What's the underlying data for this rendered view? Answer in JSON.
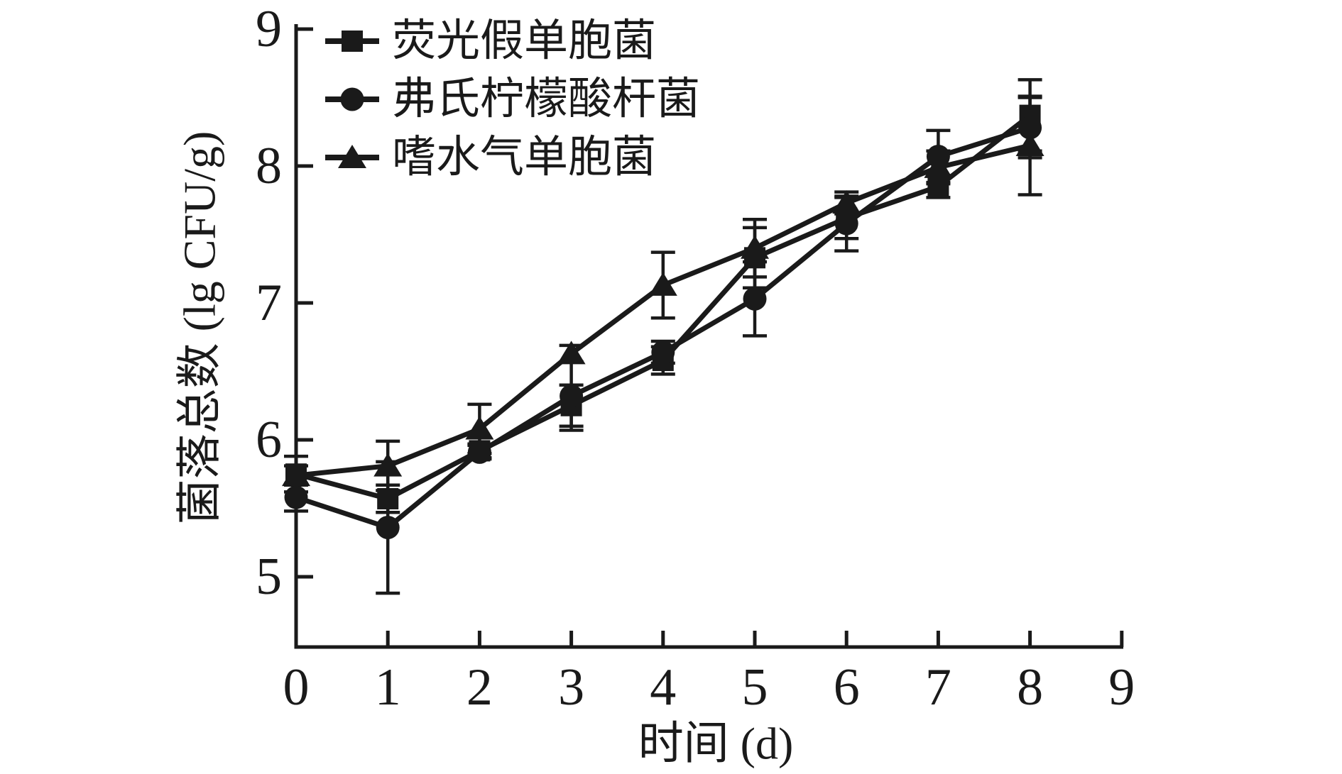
{
  "figure": {
    "background": "#ffffff",
    "ink_color": "#1a1a1a"
  },
  "chart_data": {
    "type": "line",
    "title": "",
    "xlabel": "时间 (d)",
    "ylabel": "菌落总数 (lg CFU/g)",
    "x": [
      0,
      1,
      2,
      3,
      4,
      5,
      6,
      7,
      8
    ],
    "xlim": [
      0,
      9
    ],
    "ylim": [
      4.5,
      9
    ],
    "x_ticks": [
      "0",
      "1",
      "2",
      "3",
      "4",
      "5",
      "6",
      "7",
      "8",
      "9"
    ],
    "y_ticks": [
      "5",
      "6",
      "7",
      "8",
      "9"
    ],
    "grid": false,
    "legend_position": "top-left-inside",
    "color": "#1a1a1a",
    "series": [
      {
        "name": "荧光假单胞菌",
        "marker": "square",
        "values": [
          5.75,
          5.57,
          5.92,
          6.25,
          6.58,
          7.33,
          7.62,
          7.85,
          8.37
        ],
        "errors": [
          0.13,
          0.1,
          0.05,
          0.15,
          0.1,
          0.22,
          0.15,
          0.08,
          0.26
        ]
      },
      {
        "name": "弗氏柠檬酸杆菌",
        "marker": "circle",
        "values": [
          5.58,
          5.36,
          5.91,
          6.32,
          6.64,
          7.03,
          7.58,
          8.07,
          8.28
        ],
        "errors": [
          0.1,
          0.48,
          0.05,
          0.25,
          0.08,
          0.27,
          0.2,
          0.19,
          0.22
        ]
      },
      {
        "name": "嗜水气单胞菌",
        "marker": "triangle",
        "values": [
          5.74,
          5.81,
          6.08,
          6.63,
          7.13,
          7.4,
          7.73,
          7.99,
          8.15
        ],
        "errors": [
          0.07,
          0.18,
          0.18,
          0.06,
          0.24,
          0.21,
          0.08,
          0.12,
          0.36
        ]
      }
    ]
  }
}
